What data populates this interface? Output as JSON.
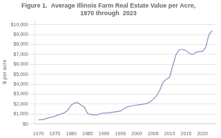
{
  "chart_data": {
    "type": "line",
    "title": "Figure 1.  Average Illinois Farm Real Estate Value per Acre,\n1970 through  2023",
    "ylabel": "$ per acre",
    "x": [
      1970,
      1971,
      1972,
      1973,
      1974,
      1975,
      1976,
      1977,
      1978,
      1979,
      1980,
      1981,
      1982,
      1983,
      1984,
      1985,
      1986,
      1987,
      1988,
      1989,
      1990,
      1991,
      1992,
      1993,
      1994,
      1995,
      1996,
      1997,
      1998,
      1999,
      2000,
      2001,
      2002,
      2003,
      2004,
      2005,
      2006,
      2007,
      2008,
      2009,
      2010,
      2011,
      2012,
      2013,
      2014,
      2015,
      2016,
      2017,
      2018,
      2019,
      2020,
      2021,
      2022,
      2023
    ],
    "values": [
      419,
      432,
      481,
      603,
      702,
      762,
      916,
      1010,
      1140,
      1400,
      1900,
      2100,
      2150,
      1900,
      1700,
      1050,
      950,
      900,
      920,
      1050,
      1100,
      1100,
      1150,
      1200,
      1250,
      1300,
      1500,
      1700,
      1800,
      1850,
      1900,
      1950,
      2000,
      2050,
      2200,
      2500,
      2800,
      3400,
      4200,
      4500,
      4700,
      5900,
      7000,
      7500,
      7500,
      7400,
      7100,
      7000,
      7200,
      7300,
      7300,
      7700,
      9000,
      9400
    ],
    "color": "#8888bb",
    "xlim": [
      1969,
      2024
    ],
    "xticks": [
      1970,
      1975,
      1980,
      1985,
      1990,
      1995,
      2000,
      2005,
      2010,
      2015,
      2020
    ],
    "ylim": [
      0,
      10500
    ],
    "yticks": [
      {
        "value": 0,
        "label": "$0"
      },
      {
        "value": 1000,
        "label": "$1,000"
      },
      {
        "value": 2000,
        "label": "$2,000"
      },
      {
        "value": 3000,
        "label": "$3,000"
      },
      {
        "value": 4000,
        "label": "$4,000"
      },
      {
        "value": 5000,
        "label": "$5,000"
      },
      {
        "value": 6000,
        "label": "$6,000"
      },
      {
        "value": 7000,
        "label": "$7,000"
      },
      {
        "value": 8000,
        "label": "$8,000"
      },
      {
        "value": 9000,
        "label": "$9,000"
      },
      {
        "value": 10000,
        "label": "$10,000"
      }
    ],
    "grid": "y"
  }
}
